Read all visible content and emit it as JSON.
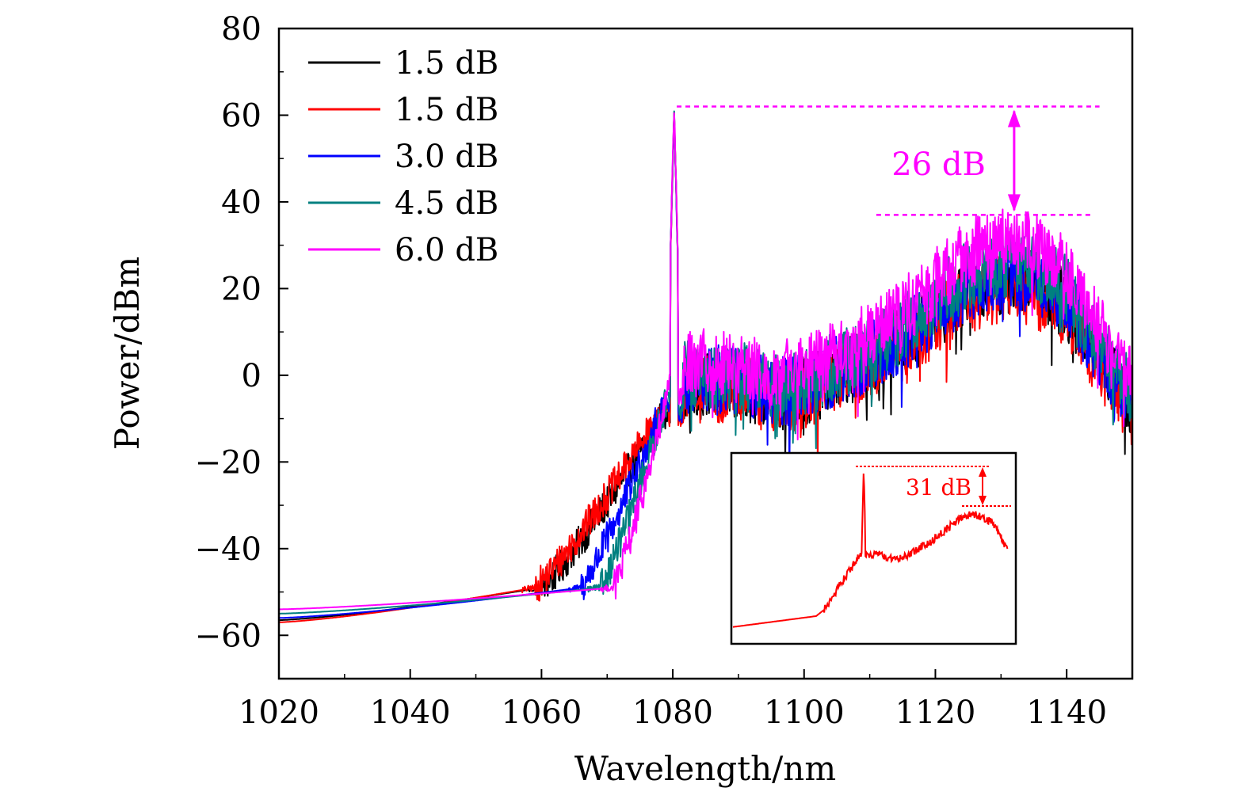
{
  "chart_data": {
    "type": "line",
    "xlabel": "Wavelength/nm",
    "ylabel": "Power/dBm",
    "xlim": [
      1020,
      1150
    ],
    "ylim": [
      -70,
      80
    ],
    "xticks": [
      1020,
      1040,
      1060,
      1080,
      1100,
      1120,
      1140
    ],
    "yticks": [
      80,
      60,
      40,
      20,
      0,
      -20,
      -40,
      -60
    ],
    "ytick_labels": [
      "80",
      "60",
      "40",
      "20",
      "0",
      "−20",
      "−40",
      "−60"
    ],
    "grid": false,
    "legend_position": "top-left",
    "series": [
      {
        "name": "1.5 dB",
        "color": "#000000",
        "floor_start": -56.5,
        "edge_start": 1060,
        "edge_end": 1079,
        "noise_floor": -2,
        "peak": 61,
        "bump_peak": 22
      },
      {
        "name": "1.5 dB",
        "color": "#ff0000",
        "floor_start": -57,
        "edge_start": 1059,
        "edge_end": 1078,
        "noise_floor": -3,
        "peak": 61,
        "bump_peak": 20
      },
      {
        "name": "3.0 dB",
        "color": "#0000ff",
        "floor_start": -56,
        "edge_start": 1066,
        "edge_end": 1078.5,
        "noise_floor": -1,
        "peak": 61,
        "bump_peak": 23
      },
      {
        "name": "4.5 dB",
        "color": "#008080",
        "floor_start": -55,
        "edge_start": 1069,
        "edge_end": 1079,
        "noise_floor": 0,
        "peak": 61,
        "bump_peak": 26
      },
      {
        "name": "6.0 dB",
        "color": "#ff00ff",
        "floor_start": -54,
        "edge_start": 1071,
        "edge_end": 1079.5,
        "noise_floor": 3,
        "peak": 62,
        "bump_peak": 31
      }
    ],
    "annotations": [
      {
        "text": "26 dB",
        "color": "#ff00ff",
        "x": 1132,
        "y_top": 62,
        "y_bottom": 37
      }
    ],
    "inset": {
      "color": "#ff0000",
      "annotation": "31 dB"
    }
  }
}
